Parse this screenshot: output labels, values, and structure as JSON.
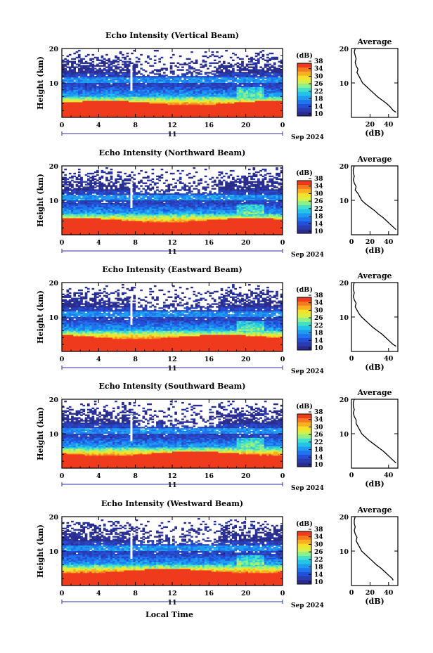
{
  "figure": {
    "xlabel_bottom": "Local Time",
    "date_label": "Sep 2024",
    "day_label": "11",
    "colors": {
      "scale": [
        "#2a2c8c",
        "#2b3bb0",
        "#2450d8",
        "#1f74f0",
        "#1e9cf0",
        "#25c3e8",
        "#44e0c8",
        "#8ef08a",
        "#d6f048",
        "#f5e02a",
        "#f8b020",
        "#f57a1e",
        "#ef3b1d"
      ]
    }
  },
  "chart_data": [
    {
      "type": "heatmap",
      "title": "Echo Intensity (Vertical Beam)",
      "ylabel": "Height (km)",
      "x_ticks": [
        "0",
        "4",
        "8",
        "12",
        "16",
        "20",
        "0"
      ],
      "y_ticks": [
        "10",
        "20"
      ],
      "xlim": [
        0,
        24
      ],
      "ylim": [
        0,
        20
      ],
      "colorbar": {
        "unit": "(dB)",
        "ticks": [
          "10",
          "14",
          "18",
          "22",
          "26",
          "30",
          "34",
          "38"
        ],
        "range": [
          10,
          38
        ]
      },
      "profile": {
        "title": "Average",
        "xlabel": "(dB)",
        "x_ticks": [
          "20",
          "40"
        ],
        "y_ticks": [
          "10",
          "20"
        ],
        "xlim": [
          0,
          50
        ],
        "height_km": [
          1.5,
          2,
          3,
          4,
          5,
          6,
          7,
          8,
          9,
          10,
          11,
          12,
          13,
          14,
          15,
          16,
          17,
          18,
          19,
          20
        ],
        "value_db": [
          48,
          45,
          42,
          38,
          33,
          28,
          24,
          20,
          16,
          12,
          10,
          8,
          6,
          7,
          5,
          4,
          5,
          4,
          3,
          4
        ]
      }
    },
    {
      "type": "heatmap",
      "title": "Echo Intensity (Northward Beam)",
      "ylabel": "Height (km)",
      "x_ticks": [
        "0",
        "4",
        "8",
        "12",
        "16",
        "20",
        "0"
      ],
      "y_ticks": [
        "10",
        "20"
      ],
      "xlim": [
        0,
        24
      ],
      "ylim": [
        0,
        20
      ],
      "colorbar": {
        "unit": "(dB)",
        "ticks": [
          "10",
          "14",
          "18",
          "22",
          "26",
          "30",
          "34",
          "38"
        ],
        "range": [
          10,
          38
        ]
      },
      "profile": {
        "title": "Average",
        "xlabel": "(dB)",
        "x_ticks": [
          "0",
          "20",
          "40"
        ],
        "y_ticks": [
          "10",
          "20"
        ],
        "xlim": [
          0,
          50
        ],
        "height_km": [
          1.5,
          2,
          3,
          4,
          5,
          6,
          7,
          8,
          9,
          10,
          11,
          12,
          13,
          14,
          15,
          16,
          17,
          18,
          19,
          20
        ],
        "value_db": [
          48,
          46,
          42,
          38,
          34,
          29,
          25,
          20,
          15,
          11,
          9,
          7,
          4,
          5,
          3,
          2,
          3,
          2,
          2,
          3
        ]
      }
    },
    {
      "type": "heatmap",
      "title": "Echo Intensity (Eastward Beam)",
      "ylabel": "Height (km)",
      "x_ticks": [
        "0",
        "4",
        "8",
        "12",
        "16",
        "20",
        "0"
      ],
      "y_ticks": [
        "10",
        "20"
      ],
      "xlim": [
        0,
        24
      ],
      "ylim": [
        0,
        20
      ],
      "colorbar": {
        "unit": "(dB)",
        "ticks": [
          "10",
          "14",
          "18",
          "22",
          "26",
          "30",
          "34",
          "38"
        ],
        "range": [
          10,
          38
        ]
      },
      "profile": {
        "title": "Average",
        "xlabel": "(dB)",
        "x_ticks": [
          "0",
          "40"
        ],
        "y_ticks": [
          "10",
          "20"
        ],
        "xlim": [
          0,
          50
        ],
        "height_km": [
          1.5,
          2,
          3,
          4,
          5,
          6,
          7,
          8,
          9,
          10,
          11,
          12,
          13,
          14,
          15,
          16,
          17,
          18,
          19,
          20
        ],
        "value_db": [
          48,
          45,
          41,
          37,
          33,
          28,
          23,
          19,
          15,
          11,
          8,
          6,
          4,
          5,
          3,
          2,
          3,
          2,
          2,
          3
        ]
      }
    },
    {
      "type": "heatmap",
      "title": "Echo Intensity (Southward Beam)",
      "ylabel": "Height (km)",
      "x_ticks": [
        "0",
        "4",
        "8",
        "12",
        "16",
        "20",
        "0"
      ],
      "y_ticks": [
        "10",
        "20"
      ],
      "xlim": [
        0,
        24
      ],
      "ylim": [
        0,
        20
      ],
      "colorbar": {
        "unit": "(dB)",
        "ticks": [
          "10",
          "14",
          "18",
          "22",
          "26",
          "30",
          "34",
          "38"
        ],
        "range": [
          10,
          38
        ]
      },
      "profile": {
        "title": "Average",
        "xlabel": "(dB)",
        "x_ticks": [
          "0",
          "40"
        ],
        "y_ticks": [
          "10",
          "20"
        ],
        "xlim": [
          0,
          50
        ],
        "height_km": [
          1.5,
          2,
          3,
          4,
          5,
          6,
          7,
          8,
          9,
          10,
          11,
          12,
          13,
          14,
          15,
          16,
          17,
          18,
          19,
          20
        ],
        "value_db": [
          48,
          46,
          42,
          38,
          34,
          29,
          24,
          19,
          15,
          11,
          9,
          7,
          5,
          5,
          3,
          2,
          3,
          2,
          2,
          3
        ]
      }
    },
    {
      "type": "heatmap",
      "title": "Echo Intensity (Westward Beam)",
      "ylabel": "Height (km)",
      "x_ticks": [
        "0",
        "4",
        "8",
        "12",
        "16",
        "20",
        "0"
      ],
      "y_ticks": [
        "10",
        "20"
      ],
      "xlim": [
        0,
        24
      ],
      "ylim": [
        0,
        20
      ],
      "colorbar": {
        "unit": "(dB)",
        "ticks": [
          "10",
          "14",
          "18",
          "22",
          "26",
          "30",
          "34",
          "38"
        ],
        "range": [
          10,
          38
        ]
      },
      "profile": {
        "title": "Average",
        "xlabel": "(dB)",
        "x_ticks": [
          "0",
          "20",
          "40"
        ],
        "y_ticks": [
          "10",
          "20"
        ],
        "xlim": [
          0,
          50
        ],
        "height_km": [
          1.5,
          2,
          3,
          4,
          5,
          6,
          7,
          8,
          9,
          10,
          11,
          12,
          13,
          14,
          15,
          16,
          17,
          18,
          19,
          20
        ],
        "value_db": [
          45,
          44,
          40,
          36,
          32,
          27,
          23,
          19,
          15,
          11,
          9,
          7,
          5,
          6,
          4,
          3,
          4,
          3,
          3,
          4
        ]
      }
    }
  ]
}
